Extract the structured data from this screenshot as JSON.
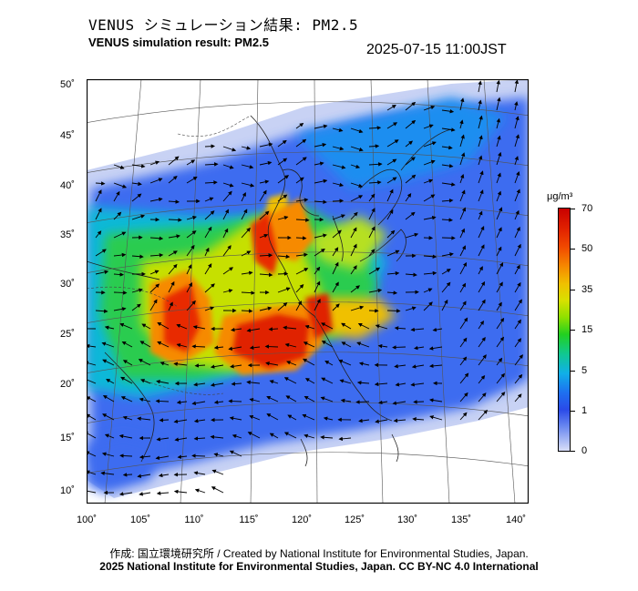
{
  "title_ja": "VENUS シミュレーション結果: PM2.5",
  "title_en": "VENUS simulation result: PM2.5",
  "timestamp": "2025-07-15 11:00JST",
  "lat_labels": [
    "50˚",
    "45˚",
    "40˚",
    "35˚",
    "30˚",
    "25˚",
    "20˚",
    "15˚",
    "10˚"
  ],
  "lon_labels": [
    "100˚",
    "105˚",
    "110˚",
    "115˚",
    "120˚",
    "125˚",
    "130˚",
    "135˚",
    "140˚"
  ],
  "colorbar": {
    "unit": "μg/m³",
    "labels": [
      "70",
      "50",
      "35",
      "15",
      "5",
      "1",
      "0"
    ]
  },
  "credit_line1": "作成: 国立環境研究所 / Created by National Institute for Environmental Studies, Japan.",
  "credit_line2": "2025 National Institute for Environmental Studies, Japan. CC BY-NC 4.0 International",
  "colors": {
    "high": "#e02000",
    "mid_high": "#f68a00",
    "mid": "#d8e000",
    "mid_low": "#22d020",
    "low": "#10b0e8",
    "very_low": "#2a4ae8",
    "background_low": "#d8def8"
  }
}
